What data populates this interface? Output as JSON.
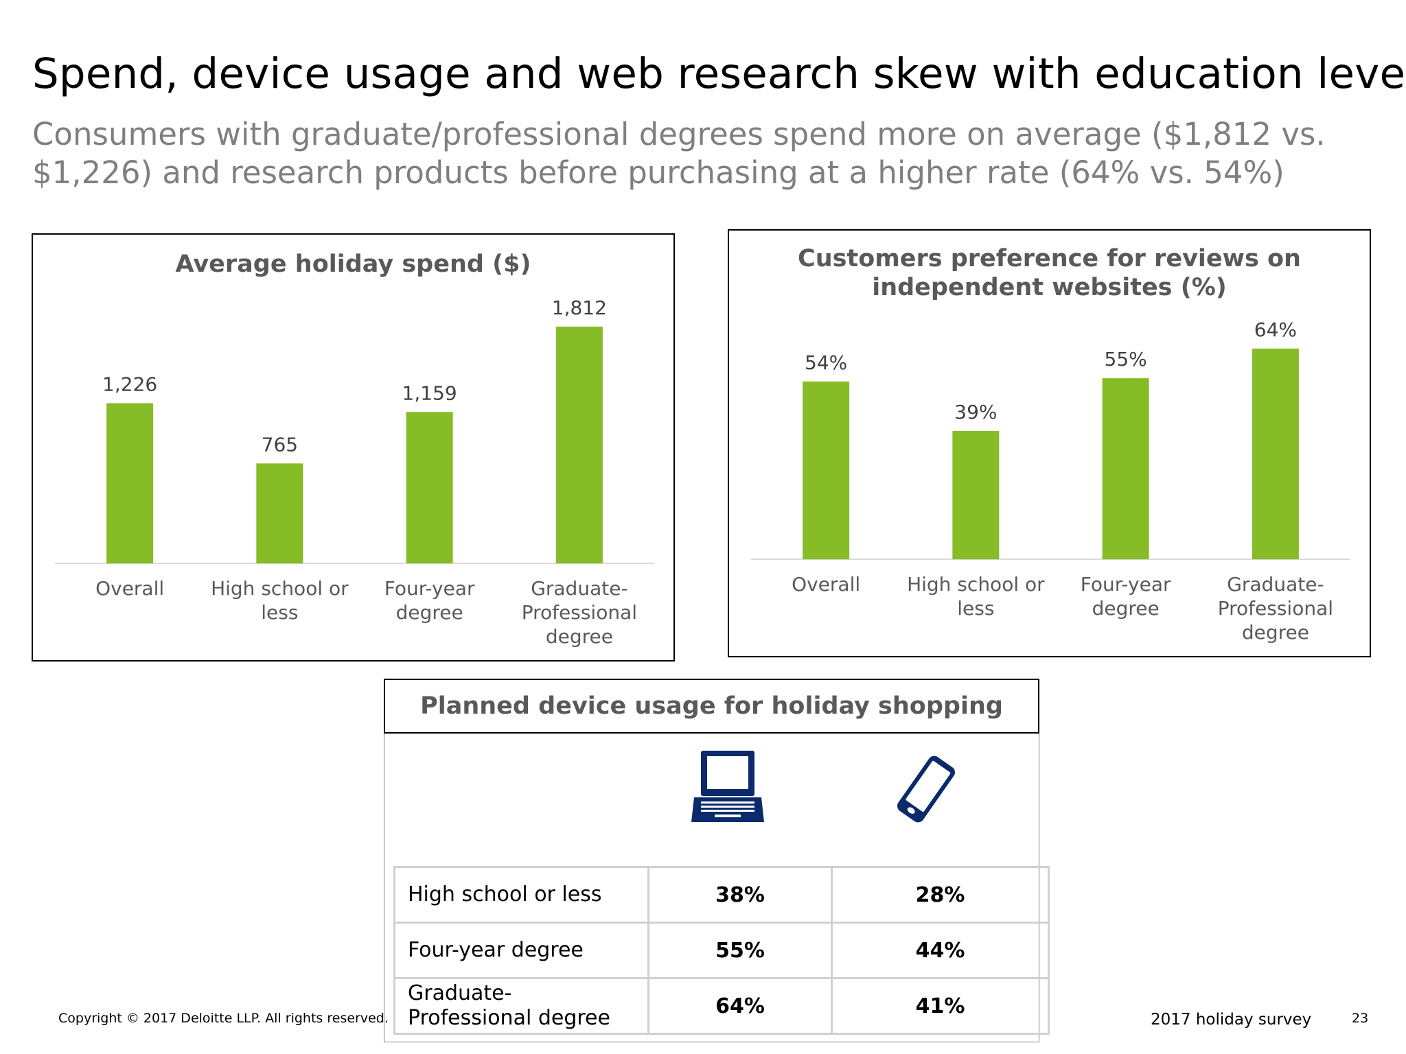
{
  "title": "Spend, device usage and web research skew with education level",
  "subtitle": "Consumers with graduate/professional degrees spend more on average ($1,812 vs. $1,226) and research products before purchasing at a higher rate (64% vs. 54%)",
  "chart_data": [
    {
      "type": "bar",
      "title": "Average holiday spend ($)",
      "categories": [
        [
          "Overall"
        ],
        [
          "High school or",
          "less"
        ],
        [
          "Four-year",
          "degree"
        ],
        [
          "Graduate-",
          "Professional",
          "degree"
        ]
      ],
      "values": [
        1226,
        765,
        1159,
        1812
      ],
      "data_labels": [
        "1,226",
        "765",
        "1,159",
        "1,812"
      ],
      "ylim": [
        0,
        1812
      ],
      "grid": false,
      "colors": {
        "bar": "#86bc25"
      }
    },
    {
      "type": "bar",
      "title": "Customers preference for reviews on independent websites (%)",
      "categories": [
        [
          "Overall"
        ],
        [
          "High school or",
          "less"
        ],
        [
          "Four-year",
          "degree"
        ],
        [
          "Graduate-",
          "Professional",
          "degree"
        ]
      ],
      "values": [
        54,
        39,
        55,
        64
      ],
      "data_labels": [
        "54%",
        "39%",
        "55%",
        "64%"
      ],
      "ylim": [
        0,
        64
      ],
      "grid": false,
      "colors": {
        "bar": "#86bc25"
      }
    }
  ],
  "device_usage": {
    "title": "Planned device usage for holiday shopping",
    "icons": [
      "laptop-icon",
      "smartphone-icon"
    ],
    "icon_color": "#0b2a6b",
    "rows": [
      {
        "label": "High school or less",
        "laptop": "38%",
        "smartphone": "28%"
      },
      {
        "label": "Four-year degree",
        "laptop": "55%",
        "smartphone": "44%"
      },
      {
        "label": "Graduate-Professional degree",
        "laptop": "64%",
        "smartphone": "41%"
      }
    ]
  },
  "footer": {
    "copyright": "Copyright © 2017 Deloitte LLP. All rights reserved.",
    "survey": "2017 holiday survey",
    "page": "23"
  }
}
